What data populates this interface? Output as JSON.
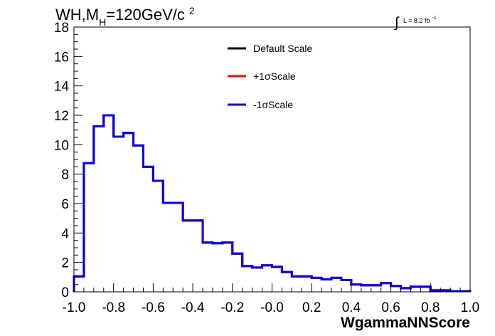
{
  "title": {
    "main": "WH,M",
    "sub": "H",
    "rest": "=120GeV/c",
    "sup": "2"
  },
  "lumi": {
    "integral": "∫",
    "text": "L = 8.2 fb",
    "sup": "-1"
  },
  "chart_data": {
    "type": "line",
    "xlabel": "WgammaNNScore",
    "ylabel": "",
    "xlim": [
      -1.0,
      1.0
    ],
    "ylim": [
      0,
      18
    ],
    "x_ticks": [
      "-1.0",
      "-0.8",
      "-0.6",
      "-0.4",
      "-0.2",
      "-0.0",
      "0.2",
      "0.4",
      "0.6",
      "0.8",
      "1.0"
    ],
    "x_tick_values": [
      -1.0,
      -0.8,
      -0.6,
      -0.4,
      -0.2,
      0.0,
      0.2,
      0.4,
      0.6,
      0.8,
      1.0
    ],
    "y_ticks": [
      "0",
      "2",
      "4",
      "6",
      "8",
      "10",
      "12",
      "14",
      "16",
      "18"
    ],
    "y_tick_values": [
      0,
      2,
      4,
      6,
      8,
      10,
      12,
      14,
      16,
      18
    ],
    "bin_edges": [
      -1.0,
      -0.95,
      -0.9,
      -0.85,
      -0.8,
      -0.75,
      -0.7,
      -0.65,
      -0.6,
      -0.55,
      -0.5,
      -0.45,
      -0.4,
      -0.35,
      -0.3,
      -0.25,
      -0.2,
      -0.15,
      -0.1,
      -0.05,
      0.0,
      0.05,
      0.1,
      0.15,
      0.2,
      0.25,
      0.3,
      0.35,
      0.4,
      0.45,
      0.5,
      0.55,
      0.6,
      0.65,
      0.7,
      0.75,
      0.8,
      0.85,
      0.9,
      0.95,
      1.0
    ],
    "series": [
      {
        "name": "Default Scale",
        "color": "#000000",
        "values": [
          1.05,
          8.75,
          11.25,
          12.0,
          10.55,
          10.8,
          9.95,
          8.5,
          7.55,
          6.05,
          6.05,
          4.85,
          4.85,
          3.35,
          3.3,
          3.35,
          2.6,
          1.75,
          1.65,
          1.8,
          1.7,
          1.35,
          1.05,
          1.05,
          0.95,
          0.85,
          0.95,
          0.8,
          0.5,
          0.45,
          0.45,
          0.6,
          0.4,
          0.25,
          0.35,
          0.35,
          0.1,
          0.1,
          0.05,
          0.05
        ]
      },
      {
        "name": "+1σScale",
        "color": "#ff0000",
        "values": [
          1.05,
          8.75,
          11.25,
          12.0,
          10.55,
          10.8,
          9.95,
          8.5,
          7.55,
          6.05,
          6.05,
          4.85,
          4.85,
          3.35,
          3.3,
          3.35,
          2.6,
          1.75,
          1.65,
          1.8,
          1.7,
          1.35,
          1.05,
          1.05,
          0.95,
          0.85,
          0.95,
          0.8,
          0.5,
          0.45,
          0.45,
          0.6,
          0.4,
          0.25,
          0.35,
          0.35,
          0.1,
          0.1,
          0.05,
          0.05
        ]
      },
      {
        "name": "-1σScale",
        "color": "#0000ee",
        "values": [
          1.05,
          8.75,
          11.25,
          12.0,
          10.55,
          10.8,
          9.95,
          8.5,
          7.55,
          6.05,
          6.05,
          4.85,
          4.85,
          3.35,
          3.3,
          3.35,
          2.6,
          1.75,
          1.65,
          1.8,
          1.7,
          1.35,
          1.05,
          1.05,
          0.95,
          0.85,
          0.95,
          0.8,
          0.5,
          0.45,
          0.45,
          0.6,
          0.4,
          0.25,
          0.35,
          0.35,
          0.1,
          0.1,
          0.05,
          0.05
        ]
      }
    ],
    "grid": false,
    "legend_position": "top-center"
  }
}
